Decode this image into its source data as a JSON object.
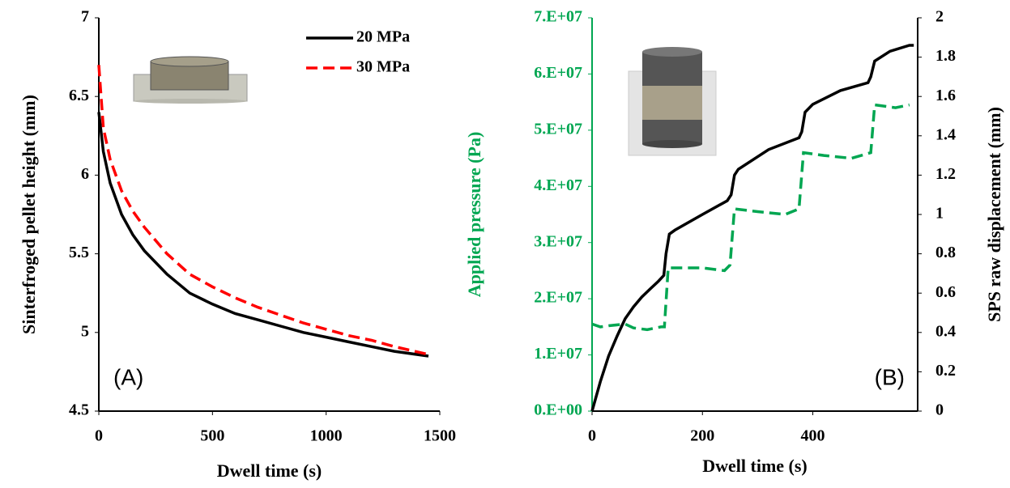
{
  "chart_data": [
    {
      "type": "line",
      "annotation": "(A)",
      "xlabel": "Dwell time (s)",
      "ylabel": "Sinterfroged pellet height (mm)",
      "legend": "upper right",
      "x": [
        0,
        20,
        50,
        100,
        150,
        200,
        300,
        400,
        500,
        600,
        700,
        800,
        900,
        1000,
        1100,
        1200,
        1300,
        1450
      ],
      "series": [
        {
          "name": "20 MPa",
          "color": "#000000",
          "linestyle": "solid",
          "values": [
            6.4,
            6.15,
            5.95,
            5.75,
            5.62,
            5.52,
            5.37,
            5.25,
            5.18,
            5.12,
            5.08,
            5.04,
            5.0,
            4.97,
            4.94,
            4.91,
            4.88,
            4.85
          ]
        },
        {
          "name": "30 MPa",
          "color": "#ff0000",
          "linestyle": "dashed",
          "values": [
            6.7,
            6.3,
            6.1,
            5.9,
            5.77,
            5.67,
            5.5,
            5.37,
            5.29,
            5.22,
            5.16,
            5.11,
            5.06,
            5.02,
            4.98,
            4.95,
            4.91,
            4.86
          ]
        }
      ],
      "xlim": [
        0,
        1500
      ],
      "xticks": [
        0,
        500,
        1000,
        1500
      ],
      "ylim": [
        4.5,
        7
      ],
      "yticks": [
        4.5,
        5,
        5.5,
        6,
        6.5,
        7
      ]
    },
    {
      "type": "line",
      "annotation": "(B)",
      "xlabel": "Dwell time (s)",
      "ylabel": "Applied pressure (Pa)",
      "y2label": "SPS raw displacement (mm)",
      "series": [
        {
          "color": "#00a651",
          "linestyle": "dashed",
          "axis": "y",
          "x": [
            0,
            15,
            30,
            60,
            75,
            100,
            125,
            131,
            138,
            200,
            240,
            250,
            258,
            300,
            350,
            375,
            383,
            420,
            470,
            505,
            512,
            550,
            575
          ],
          "values": [
            15500000,
            15000000,
            15200000,
            15500000,
            14800000,
            14500000,
            15000000,
            15000000,
            25500000,
            25500000,
            25000000,
            26000000,
            36000000,
            35500000,
            35000000,
            36000000,
            46000000,
            45500000,
            45000000,
            46000000,
            54500000,
            54000000,
            54500000
          ]
        },
        {
          "color": "#000000",
          "linestyle": "solid",
          "axis": "y2",
          "x": [
            0,
            15,
            30,
            45,
            60,
            75,
            90,
            105,
            120,
            130,
            134,
            140,
            150,
            200,
            245,
            252,
            258,
            265,
            320,
            375,
            380,
            386,
            400,
            450,
            500,
            505,
            512,
            540,
            575,
            583
          ],
          "values": [
            0,
            0.15,
            0.28,
            0.38,
            0.47,
            0.53,
            0.58,
            0.62,
            0.66,
            0.69,
            0.8,
            0.9,
            0.92,
            1.0,
            1.07,
            1.1,
            1.2,
            1.23,
            1.33,
            1.39,
            1.42,
            1.52,
            1.56,
            1.63,
            1.67,
            1.7,
            1.78,
            1.83,
            1.86,
            1.86
          ]
        }
      ],
      "xlim": [
        0,
        590
      ],
      "xticks": [
        0,
        200,
        400
      ],
      "ylim": [
        0,
        70000000
      ],
      "yticks": [
        {
          "value": 0,
          "label": "0.E+00"
        },
        {
          "value": 10000000,
          "label": "1.E+07"
        },
        {
          "value": 20000000,
          "label": "2.E+07"
        },
        {
          "value": 30000000,
          "label": "3.E+07"
        },
        {
          "value": 40000000,
          "label": "4.E+07"
        },
        {
          "value": 50000000,
          "label": "5.E+07"
        },
        {
          "value": 60000000,
          "label": "6.E+07"
        },
        {
          "value": 70000000,
          "label": "7.E+07"
        }
      ],
      "y2lim": [
        0,
        2
      ],
      "y2ticks": [
        0,
        0.2,
        0.4,
        0.6,
        0.8,
        1,
        1.2,
        1.4,
        1.6,
        1.8,
        2
      ]
    }
  ]
}
